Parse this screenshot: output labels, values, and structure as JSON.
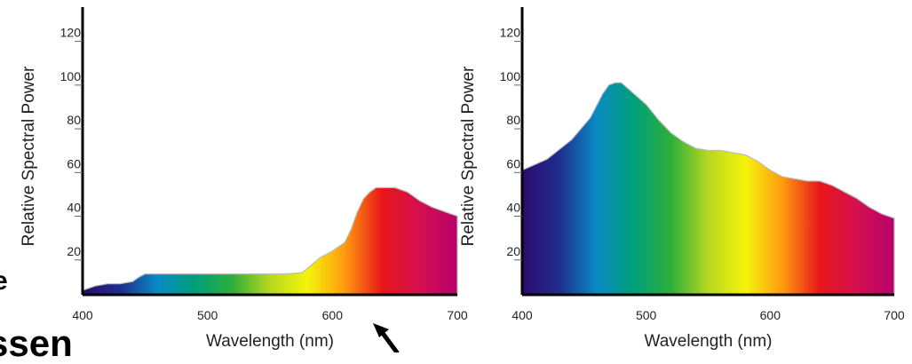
{
  "chart_data": [
    {
      "type": "area",
      "title": "",
      "xlabel": "Wavelength (nm)",
      "ylabel": "Relative Spectral Power",
      "xlim": [
        400,
        700
      ],
      "ylim": [
        0,
        130
      ],
      "xticks": [
        400,
        500,
        600,
        700
      ],
      "yticks": [
        20,
        40,
        60,
        80,
        100,
        120
      ],
      "fill": "visible-spectrum-gradient",
      "series": [
        {
          "x": [
            400,
            410,
            420,
            430,
            440,
            445,
            450,
            460,
            480,
            500,
            520,
            540,
            560,
            575,
            580,
            590,
            600,
            610,
            615,
            620,
            625,
            630,
            635,
            640,
            650,
            660,
            670,
            680,
            690,
            700
          ],
          "values": [
            2,
            4,
            5,
            5,
            6,
            8,
            9.5,
            9.5,
            9.5,
            9.5,
            9.5,
            9.5,
            9.5,
            10,
            12,
            17,
            20,
            24,
            30,
            38,
            44,
            47,
            49,
            49,
            49,
            47,
            43,
            40,
            38,
            36
          ]
        }
      ]
    },
    {
      "type": "area",
      "title": "",
      "xlabel": "Wavelength (nm)",
      "ylabel": "Relative Spectral Power",
      "xlim": [
        400,
        700
      ],
      "ylim": [
        0,
        130
      ],
      "xticks": [
        400,
        500,
        600,
        700
      ],
      "yticks": [
        20,
        40,
        60,
        80,
        100,
        120
      ],
      "fill": "visible-spectrum-gradient",
      "series": [
        {
          "x": [
            400,
            420,
            440,
            455,
            465,
            470,
            475,
            480,
            490,
            500,
            510,
            520,
            530,
            540,
            550,
            560,
            570,
            580,
            590,
            600,
            610,
            620,
            630,
            640,
            650,
            660,
            670,
            680,
            690,
            700
          ],
          "values": [
            57,
            62,
            71,
            81,
            92,
            96,
            97,
            97,
            92,
            87,
            80,
            74,
            70,
            67,
            66,
            66,
            65,
            64,
            61,
            57,
            54,
            53,
            52,
            52,
            50,
            47,
            44,
            40,
            37,
            35
          ]
        }
      ]
    }
  ],
  "fragments": {
    "left_clip": "e",
    "bottom_clip": "ssen"
  },
  "colors": {
    "spectrum": [
      "#2d0a6e",
      "#1f2d8c",
      "#0a8ac4",
      "#00a07a",
      "#2fae3a",
      "#b6d820",
      "#f4f40a",
      "#ff9a10",
      "#e8161a",
      "#d41050",
      "#b8006a"
    ]
  }
}
